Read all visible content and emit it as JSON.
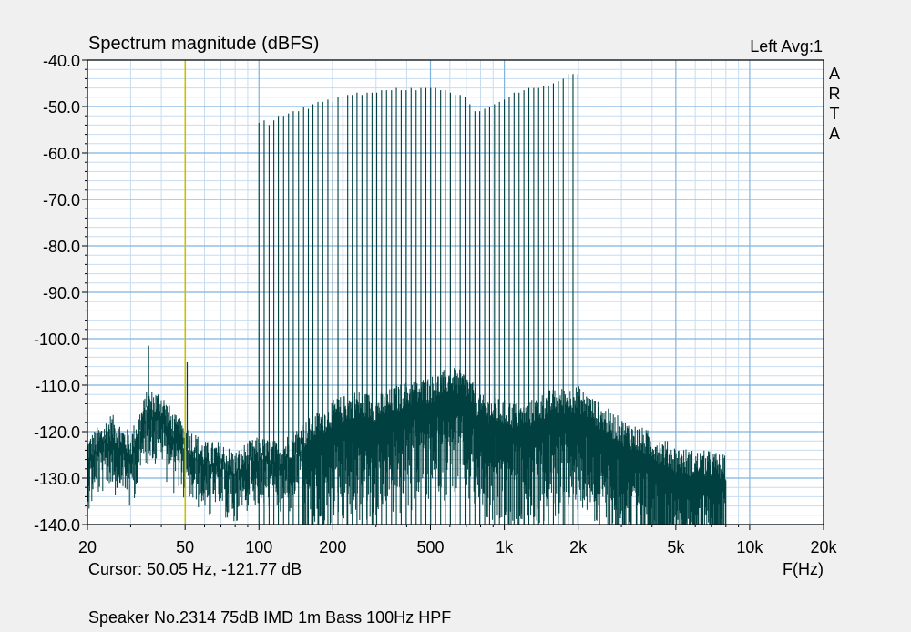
{
  "header": {
    "title": "Spectrum magnitude (dBFS)",
    "channel_info": "Left  Avg:1"
  },
  "brand_letters": [
    "A",
    "R",
    "T",
    "A"
  ],
  "footer": {
    "cursor_readout": "Cursor: 50.05 Hz, -121.77 dB",
    "x_axis_title": "F(Hz)",
    "caption": "Speaker No.2314 75dB IMD 1m Bass 100Hz HPF"
  },
  "colors": {
    "background": "#f0f0f0",
    "plot_background": "#ffffff",
    "major_grid": "#7fb3e0",
    "minor_grid": "#c8dcf0",
    "trace": "#004040",
    "cursor": "#c8c000"
  },
  "chart_data": {
    "type": "line",
    "title": "Spectrum magnitude (dBFS)",
    "xlabel": "F(Hz)",
    "ylabel": "",
    "x_scale": "log",
    "xlim": [
      20,
      20000
    ],
    "ylim": [
      -140,
      -40
    ],
    "x_ticks": [
      {
        "value": 20,
        "label": "20"
      },
      {
        "value": 50,
        "label": "50"
      },
      {
        "value": 100,
        "label": "100"
      },
      {
        "value": 200,
        "label": "200"
      },
      {
        "value": 500,
        "label": "500"
      },
      {
        "value": 1000,
        "label": "1k"
      },
      {
        "value": 2000,
        "label": "2k"
      },
      {
        "value": 5000,
        "label": "5k"
      },
      {
        "value": 10000,
        "label": "10k"
      },
      {
        "value": 20000,
        "label": "20k"
      }
    ],
    "y_ticks": [
      {
        "value": -40,
        "label": "-40.0"
      },
      {
        "value": -50,
        "label": "-50.0"
      },
      {
        "value": -60,
        "label": "-60.0"
      },
      {
        "value": -70,
        "label": "-70.0"
      },
      {
        "value": -80,
        "label": "-80.0"
      },
      {
        "value": -90,
        "label": "-90.0"
      },
      {
        "value": -100,
        "label": "-100.0"
      },
      {
        "value": -110,
        "label": "-110.0"
      },
      {
        "value": -120,
        "label": "-120.0"
      },
      {
        "value": -130,
        "label": "-130.0"
      },
      {
        "value": -140,
        "label": "-140.0"
      }
    ],
    "grid": true,
    "cursor": {
      "frequency": 50.05,
      "level": -121.77
    },
    "series": [
      {
        "tone_peaks_hz": [
          100,
          105,
          110,
          115,
          120,
          126,
          132,
          138,
          145,
          152,
          159,
          166,
          174,
          182,
          191,
          200,
          210,
          220,
          230,
          240,
          251,
          263,
          276,
          289,
          302,
          316,
          331,
          347,
          363,
          380,
          398,
          417,
          437,
          457,
          479,
          501,
          525,
          550,
          575,
          603,
          631,
          661,
          692,
          724,
          759,
          794,
          832,
          871,
          912,
          955,
          1000,
          1047,
          1096,
          1148,
          1202,
          1259,
          1318,
          1380,
          1445,
          1514,
          1585,
          1660,
          1738,
          1820,
          1905,
          1995
        ],
        "tone_levels_db": [
          -53.5,
          -53,
          -54,
          -53,
          -52,
          -52,
          -51.5,
          -51,
          -51,
          -50,
          -50.5,
          -49.5,
          -49,
          -49,
          -48.5,
          -49,
          -48,
          -48,
          -47.5,
          -47.5,
          -47,
          -47.5,
          -47,
          -47,
          -47,
          -46.5,
          -46.5,
          -46.5,
          -46,
          -46.5,
          -46.5,
          -46,
          -46.5,
          -46,
          -46,
          -46,
          -46,
          -46.5,
          -46.5,
          -47,
          -47.5,
          -47.5,
          -48,
          -49.5,
          -51,
          -51,
          -50.5,
          -50,
          -49.5,
          -49,
          -48.5,
          -48,
          -47,
          -47,
          -46.5,
          -46,
          -46,
          -46,
          -45.5,
          -45.5,
          -45,
          -44.5,
          -44,
          -43,
          -43,
          -43
        ],
        "noise_floor_points": [
          [
            20,
            -125
          ],
          [
            25,
            -120
          ],
          [
            30,
            -124
          ],
          [
            35,
            -115
          ],
          [
            40,
            -115
          ],
          [
            45,
            -120
          ],
          [
            50,
            -122
          ],
          [
            60,
            -126
          ],
          [
            70,
            -126
          ],
          [
            80,
            -128
          ],
          [
            90,
            -126
          ],
          [
            100,
            -125
          ],
          [
            120,
            -126
          ],
          [
            150,
            -122
          ],
          [
            200,
            -117
          ],
          [
            250,
            -115
          ],
          [
            300,
            -116
          ],
          [
            400,
            -113
          ],
          [
            500,
            -112
          ],
          [
            600,
            -110
          ],
          [
            700,
            -111
          ],
          [
            800,
            -116
          ],
          [
            1000,
            -117
          ],
          [
            1200,
            -118
          ],
          [
            1500,
            -115
          ],
          [
            2000,
            -114
          ],
          [
            2500,
            -118
          ],
          [
            3000,
            -121
          ],
          [
            4000,
            -124
          ],
          [
            5000,
            -127
          ],
          [
            6000,
            -128
          ],
          [
            7000,
            -128
          ],
          [
            8000,
            -129
          ]
        ],
        "isolated_spikes": [
          [
            35.5,
            -101.5
          ],
          [
            51,
            -105
          ]
        ]
      }
    ]
  }
}
